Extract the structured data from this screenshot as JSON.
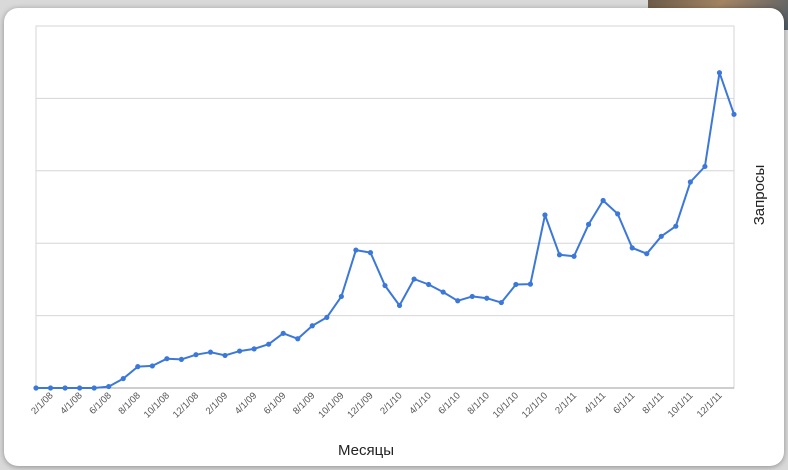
{
  "chart_data": {
    "type": "line",
    "title": "",
    "xlabel": "Месяцы",
    "ylabel": "Запросы",
    "x": [
      "1/1/08",
      "2/1/08",
      "3/1/08",
      "4/1/08",
      "5/1/08",
      "6/1/08",
      "7/1/08",
      "8/1/08",
      "9/1/08",
      "10/1/08",
      "11/1/08",
      "12/1/08",
      "1/1/09",
      "2/1/09",
      "3/1/09",
      "4/1/09",
      "5/1/09",
      "6/1/09",
      "7/1/09",
      "8/1/09",
      "9/1/09",
      "10/1/09",
      "11/1/09",
      "12/1/09",
      "1/1/10",
      "2/1/10",
      "3/1/10",
      "4/1/10",
      "5/1/10",
      "6/1/10",
      "7/1/10",
      "8/1/10",
      "9/1/10",
      "10/1/10",
      "11/1/10",
      "12/1/10",
      "1/1/11",
      "2/1/11",
      "3/1/11",
      "4/1/11",
      "5/1/11",
      "6/1/11",
      "7/1/11",
      "8/1/11",
      "9/1/11",
      "10/1/11",
      "11/1/11",
      "12/1/11",
      "1/1/12"
    ],
    "tick_labels": [
      "2/1/08",
      "4/1/08",
      "6/1/08",
      "8/1/08",
      "10/1/08",
      "12/1/08",
      "2/1/09",
      "4/1/09",
      "6/1/09",
      "8/1/09",
      "10/1/09",
      "12/1/09",
      "2/1/10",
      "4/1/10",
      "6/1/10",
      "8/1/10",
      "10/1/10",
      "12/1/10",
      "2/1/11",
      "4/1/11",
      "6/1/11",
      "8/1/11",
      "10/1/11",
      "12/1/11"
    ],
    "series": [
      {
        "values": [
          0.0,
          0.0,
          0.0,
          0.0,
          0.0,
          0.4,
          2.6,
          5.9,
          6.1,
          8.1,
          7.9,
          9.2,
          9.9,
          9.0,
          10.2,
          10.8,
          12.1,
          15.1,
          13.6,
          17.2,
          19.5,
          25.3,
          38.1,
          37.4,
          28.3,
          22.8,
          30.1,
          28.6,
          26.5,
          24.1,
          25.3,
          24.8,
          23.6,
          28.6,
          28.7,
          47.8,
          36.8,
          36.4,
          45.2,
          51.8,
          48.1,
          38.7,
          37.1,
          41.9,
          44.7,
          56.9,
          61.2,
          87.1,
          75.6
        ]
      }
    ],
    "ylim": [
      0,
      100
    ],
    "grid": true,
    "line_color": "#3c78d8",
    "gridline_color": "#d6d6d6"
  }
}
